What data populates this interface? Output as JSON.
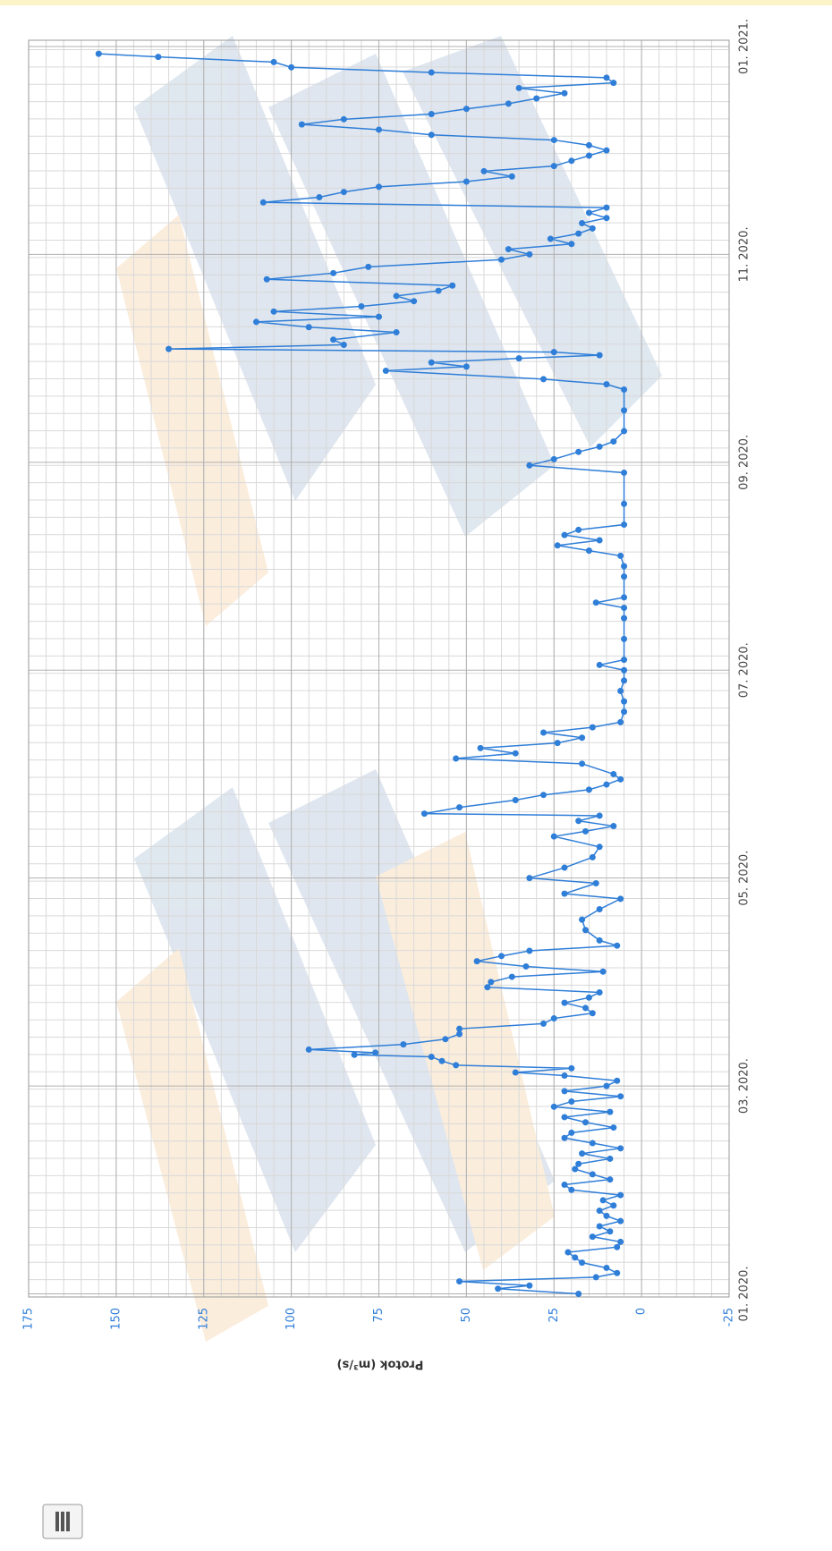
{
  "chart_data": {
    "type": "line",
    "y_label": "Protok (m³/s)",
    "color": "#2f7ed8",
    "grid": true,
    "ylim": [
      -25,
      175
    ],
    "yticks": [
      -25,
      0,
      25,
      50,
      75,
      100,
      125,
      150,
      175
    ],
    "xlim": [
      -0.03,
      12.06
    ],
    "xticks": [
      {
        "value": 0,
        "label": "01. 2020."
      },
      {
        "value": 2,
        "label": "03. 2020."
      },
      {
        "value": 4,
        "label": "05. 2020."
      },
      {
        "value": 6,
        "label": "07. 2020."
      },
      {
        "value": 8,
        "label": "09. 2020."
      },
      {
        "value": 10,
        "label": "11. 2020."
      },
      {
        "value": 12,
        "label": "01. 2021."
      }
    ],
    "x": [
      0.0,
      0.05,
      0.08,
      0.12,
      0.16,
      0.2,
      0.25,
      0.3,
      0.35,
      0.4,
      0.45,
      0.5,
      0.55,
      0.6,
      0.65,
      0.7,
      0.75,
      0.8,
      0.85,
      0.9,
      0.95,
      1.0,
      1.05,
      1.1,
      1.15,
      1.2,
      1.25,
      1.3,
      1.35,
      1.4,
      1.45,
      1.5,
      1.55,
      1.6,
      1.65,
      1.7,
      1.75,
      1.8,
      1.85,
      1.9,
      1.95,
      2.0,
      2.05,
      2.1,
      2.13,
      2.17,
      2.2,
      2.24,
      2.28,
      2.3,
      2.32,
      2.35,
      2.4,
      2.45,
      2.5,
      2.55,
      2.6,
      2.65,
      2.7,
      2.75,
      2.8,
      2.85,
      2.9,
      2.95,
      3.0,
      3.05,
      3.1,
      3.15,
      3.2,
      3.25,
      3.3,
      3.35,
      3.4,
      3.5,
      3.6,
      3.7,
      3.8,
      3.85,
      3.95,
      4.0,
      4.1,
      4.2,
      4.3,
      4.4,
      4.45,
      4.5,
      4.55,
      4.6,
      4.62,
      4.68,
      4.75,
      4.8,
      4.85,
      4.9,
      4.95,
      5.0,
      5.1,
      5.15,
      5.2,
      5.25,
      5.3,
      5.35,
      5.4,
      5.45,
      5.5,
      5.6,
      5.7,
      5.8,
      5.9,
      6.0,
      6.05,
      6.1,
      6.3,
      6.5,
      6.6,
      6.65,
      6.7,
      6.9,
      7.0,
      7.1,
      7.15,
      7.2,
      7.25,
      7.3,
      7.35,
      7.4,
      7.6,
      7.9,
      7.97,
      8.03,
      8.1,
      8.15,
      8.2,
      8.3,
      8.5,
      8.7,
      8.75,
      8.8,
      8.88,
      8.92,
      8.96,
      9.0,
      9.03,
      9.06,
      9.09,
      9.13,
      9.18,
      9.25,
      9.3,
      9.35,
      9.4,
      9.45,
      9.5,
      9.55,
      9.6,
      9.65,
      9.7,
      9.76,
      9.82,
      9.88,
      9.95,
      10.0,
      10.05,
      10.1,
      10.15,
      10.2,
      10.25,
      10.3,
      10.35,
      10.4,
      10.45,
      10.5,
      10.55,
      10.6,
      10.65,
      10.7,
      10.75,
      10.8,
      10.85,
      10.9,
      10.95,
      11.0,
      11.05,
      11.1,
      11.15,
      11.2,
      11.25,
      11.3,
      11.35,
      11.4,
      11.45,
      11.5,
      11.55,
      11.6,
      11.65,
      11.7,
      11.75,
      11.8,
      11.85,
      11.9,
      11.93
    ],
    "values": [
      18,
      41,
      32,
      52,
      13,
      7,
      10,
      17,
      19,
      21,
      7,
      6,
      14,
      9,
      12,
      6,
      10,
      12,
      8,
      11,
      6,
      20,
      22,
      9,
      14,
      19,
      18,
      9,
      17,
      6,
      14,
      22,
      20,
      8,
      16,
      22,
      9,
      25,
      20,
      6,
      22,
      10,
      7,
      22,
      36,
      20,
      53,
      57,
      60,
      82,
      76,
      95,
      68,
      56,
      52,
      52,
      28,
      25,
      14,
      16,
      22,
      15,
      12,
      44,
      43,
      37,
      11,
      33,
      47,
      40,
      32,
      7,
      12,
      16,
      17,
      12,
      6,
      22,
      13,
      32,
      22,
      14,
      12,
      25,
      16,
      8,
      18,
      12,
      62,
      52,
      36,
      28,
      15,
      10,
      6,
      8,
      17,
      53,
      36,
      46,
      24,
      17,
      28,
      14,
      6,
      5,
      5,
      6,
      5,
      5,
      12,
      5,
      5,
      5,
      5,
      13,
      5,
      5,
      5,
      6,
      15,
      24,
      12,
      22,
      18,
      5,
      5,
      5,
      32,
      25,
      18,
      12,
      8,
      5,
      5,
      5,
      10,
      28,
      73,
      50,
      60,
      35,
      12,
      25,
      135,
      85,
      88,
      70,
      95,
      110,
      75,
      105,
      80,
      65,
      70,
      58,
      54,
      107,
      88,
      78,
      40,
      32,
      38,
      20,
      26,
      18,
      14,
      17,
      10,
      15,
      10,
      108,
      92,
      85,
      75,
      50,
      37,
      45,
      25,
      20,
      15,
      10,
      15,
      25,
      60,
      75,
      97,
      85,
      60,
      50,
      38,
      30,
      22,
      35,
      8,
      10,
      60,
      100,
      105,
      138,
      155
    ]
  }
}
